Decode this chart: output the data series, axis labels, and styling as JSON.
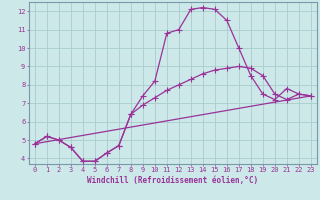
{
  "xlabel": "Windchill (Refroidissement éolien,°C)",
  "bg_color": "#cce8e8",
  "grid_color": "#aacccc",
  "line_color": "#993399",
  "xlim": [
    -0.5,
    23.5
  ],
  "ylim": [
    3.7,
    12.5
  ],
  "xticks": [
    0,
    1,
    2,
    3,
    4,
    5,
    6,
    7,
    8,
    9,
    10,
    11,
    12,
    13,
    14,
    15,
    16,
    17,
    18,
    19,
    20,
    21,
    22,
    23
  ],
  "yticks": [
    4,
    5,
    6,
    7,
    8,
    9,
    10,
    11,
    12
  ],
  "curve1_x": [
    0,
    1,
    2,
    3,
    4,
    5,
    6,
    7,
    8,
    9,
    10,
    11,
    12,
    13,
    14,
    15,
    16,
    17,
    18,
    19,
    20,
    21,
    22,
    23
  ],
  "curve1_y": [
    4.8,
    5.2,
    5.0,
    4.6,
    3.85,
    3.85,
    4.3,
    4.7,
    6.4,
    7.4,
    8.2,
    10.8,
    11.0,
    12.1,
    12.2,
    12.1,
    11.5,
    10.0,
    8.5,
    7.5,
    7.2,
    7.8,
    7.5,
    7.4
  ],
  "curve2_x": [
    0,
    1,
    2,
    3,
    4,
    5,
    6,
    7,
    8,
    9,
    10,
    11,
    12,
    13,
    14,
    15,
    16,
    17,
    18,
    19,
    20,
    21,
    22,
    23
  ],
  "curve2_y": [
    4.8,
    5.2,
    5.0,
    4.6,
    3.85,
    3.85,
    4.3,
    4.7,
    6.4,
    6.9,
    7.3,
    7.7,
    8.0,
    8.3,
    8.6,
    8.8,
    8.9,
    9.0,
    8.9,
    8.5,
    7.5,
    7.2,
    7.5,
    7.4
  ],
  "curve3_x": [
    0,
    23
  ],
  "curve3_y": [
    4.8,
    7.4
  ],
  "markersize": 3,
  "linewidth": 0.9,
  "tick_fontsize": 5,
  "xlabel_fontsize": 5.5
}
